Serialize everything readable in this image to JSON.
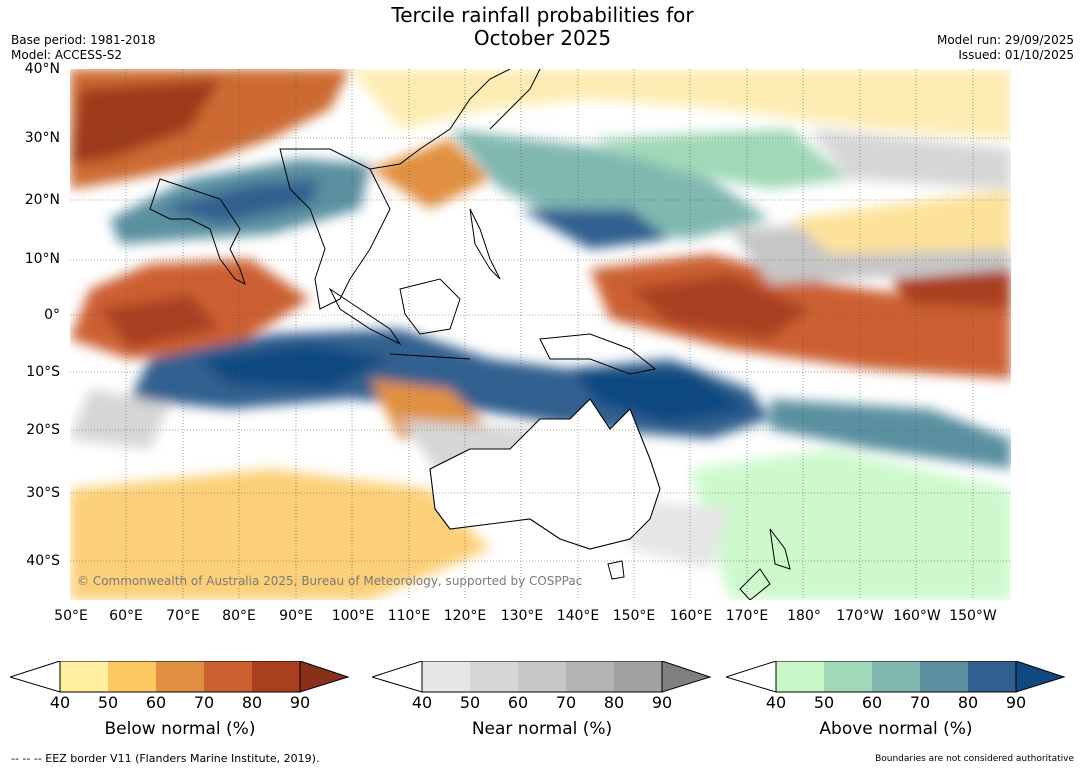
{
  "title_line1": "Tercile rainfall probabilities for",
  "title_line2": "October 2025",
  "base_period": "Base period: 1981-2018",
  "model": "Model: ACCESS-S2",
  "model_run": "Model run: 29/09/2025",
  "issued": "Issued: 01/10/2025",
  "lat_labels": [
    "40°N",
    "30°N",
    "20°N",
    "10°N",
    "0°",
    "10°S",
    "20°S",
    "30°S",
    "40°S"
  ],
  "lon_labels": [
    "50°E",
    "60°E",
    "70°E",
    "80°E",
    "90°E",
    "100°E",
    "110°E",
    "120°E",
    "130°E",
    "140°E",
    "150°E",
    "160°E",
    "170°E",
    "180°",
    "170°W",
    "160°W",
    "150°W"
  ],
  "copyright": "© Commonwealth of Australia 2025, Bureau of Meteorology, supported by COSPPac",
  "colorbars": [
    {
      "name": "Below normal (%)",
      "ticks": [
        "40",
        "50",
        "60",
        "70",
        "80",
        "90"
      ],
      "colors": [
        "#fff0a0",
        "#fcc860",
        "#e09040",
        "#cc6030",
        "#aa4020",
        "#883018"
      ]
    },
    {
      "name": "Near normal (%)",
      "ticks": [
        "40",
        "50",
        "60",
        "70",
        "80",
        "90"
      ],
      "colors": [
        "#e6e6e6",
        "#d6d6d6",
        "#c6c6c6",
        "#b4b4b4",
        "#a2a2a2",
        "#808080"
      ]
    },
    {
      "name": "Above normal (%)",
      "ticks": [
        "40",
        "50",
        "60",
        "70",
        "80",
        "90"
      ],
      "colors": [
        "#c8f8c8",
        "#a0d8b8",
        "#80b8b0",
        "#5a90a0",
        "#306090",
        "#104880"
      ]
    }
  ],
  "footer_left": "-- -- -- EEZ border V11 (Flanders Marine Institute, 2019).",
  "footer_right": "Boundaries are not considered authoritative"
}
